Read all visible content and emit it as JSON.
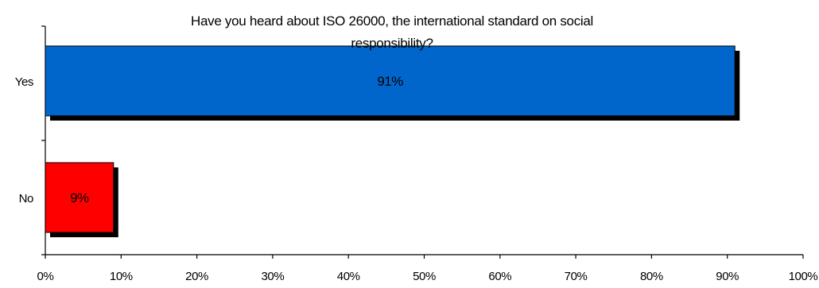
{
  "chart_data": {
    "type": "bar",
    "orientation": "horizontal",
    "title": "Have you heard about ISO 26000, the international standard on social responsibility?",
    "title_lines": [
      "Have you heard about ISO 26000, the international standard on social",
      "responsibility?"
    ],
    "categories": [
      "Yes",
      "No"
    ],
    "values": [
      91,
      9
    ],
    "value_labels": [
      "91%",
      "9%"
    ],
    "bar_colors": [
      "#0066CC",
      "#FF0000"
    ],
    "shadow_color": "#000000",
    "xlim": [
      0,
      100
    ],
    "xticks": [
      0,
      10,
      20,
      30,
      40,
      50,
      60,
      70,
      80,
      90,
      100
    ],
    "xtick_labels": [
      "0%",
      "10%",
      "20%",
      "30%",
      "40%",
      "50%",
      "60%",
      "70%",
      "80%",
      "90%",
      "100%"
    ],
    "grid": false,
    "legend": "none",
    "xlabel": "",
    "ylabel": ""
  }
}
